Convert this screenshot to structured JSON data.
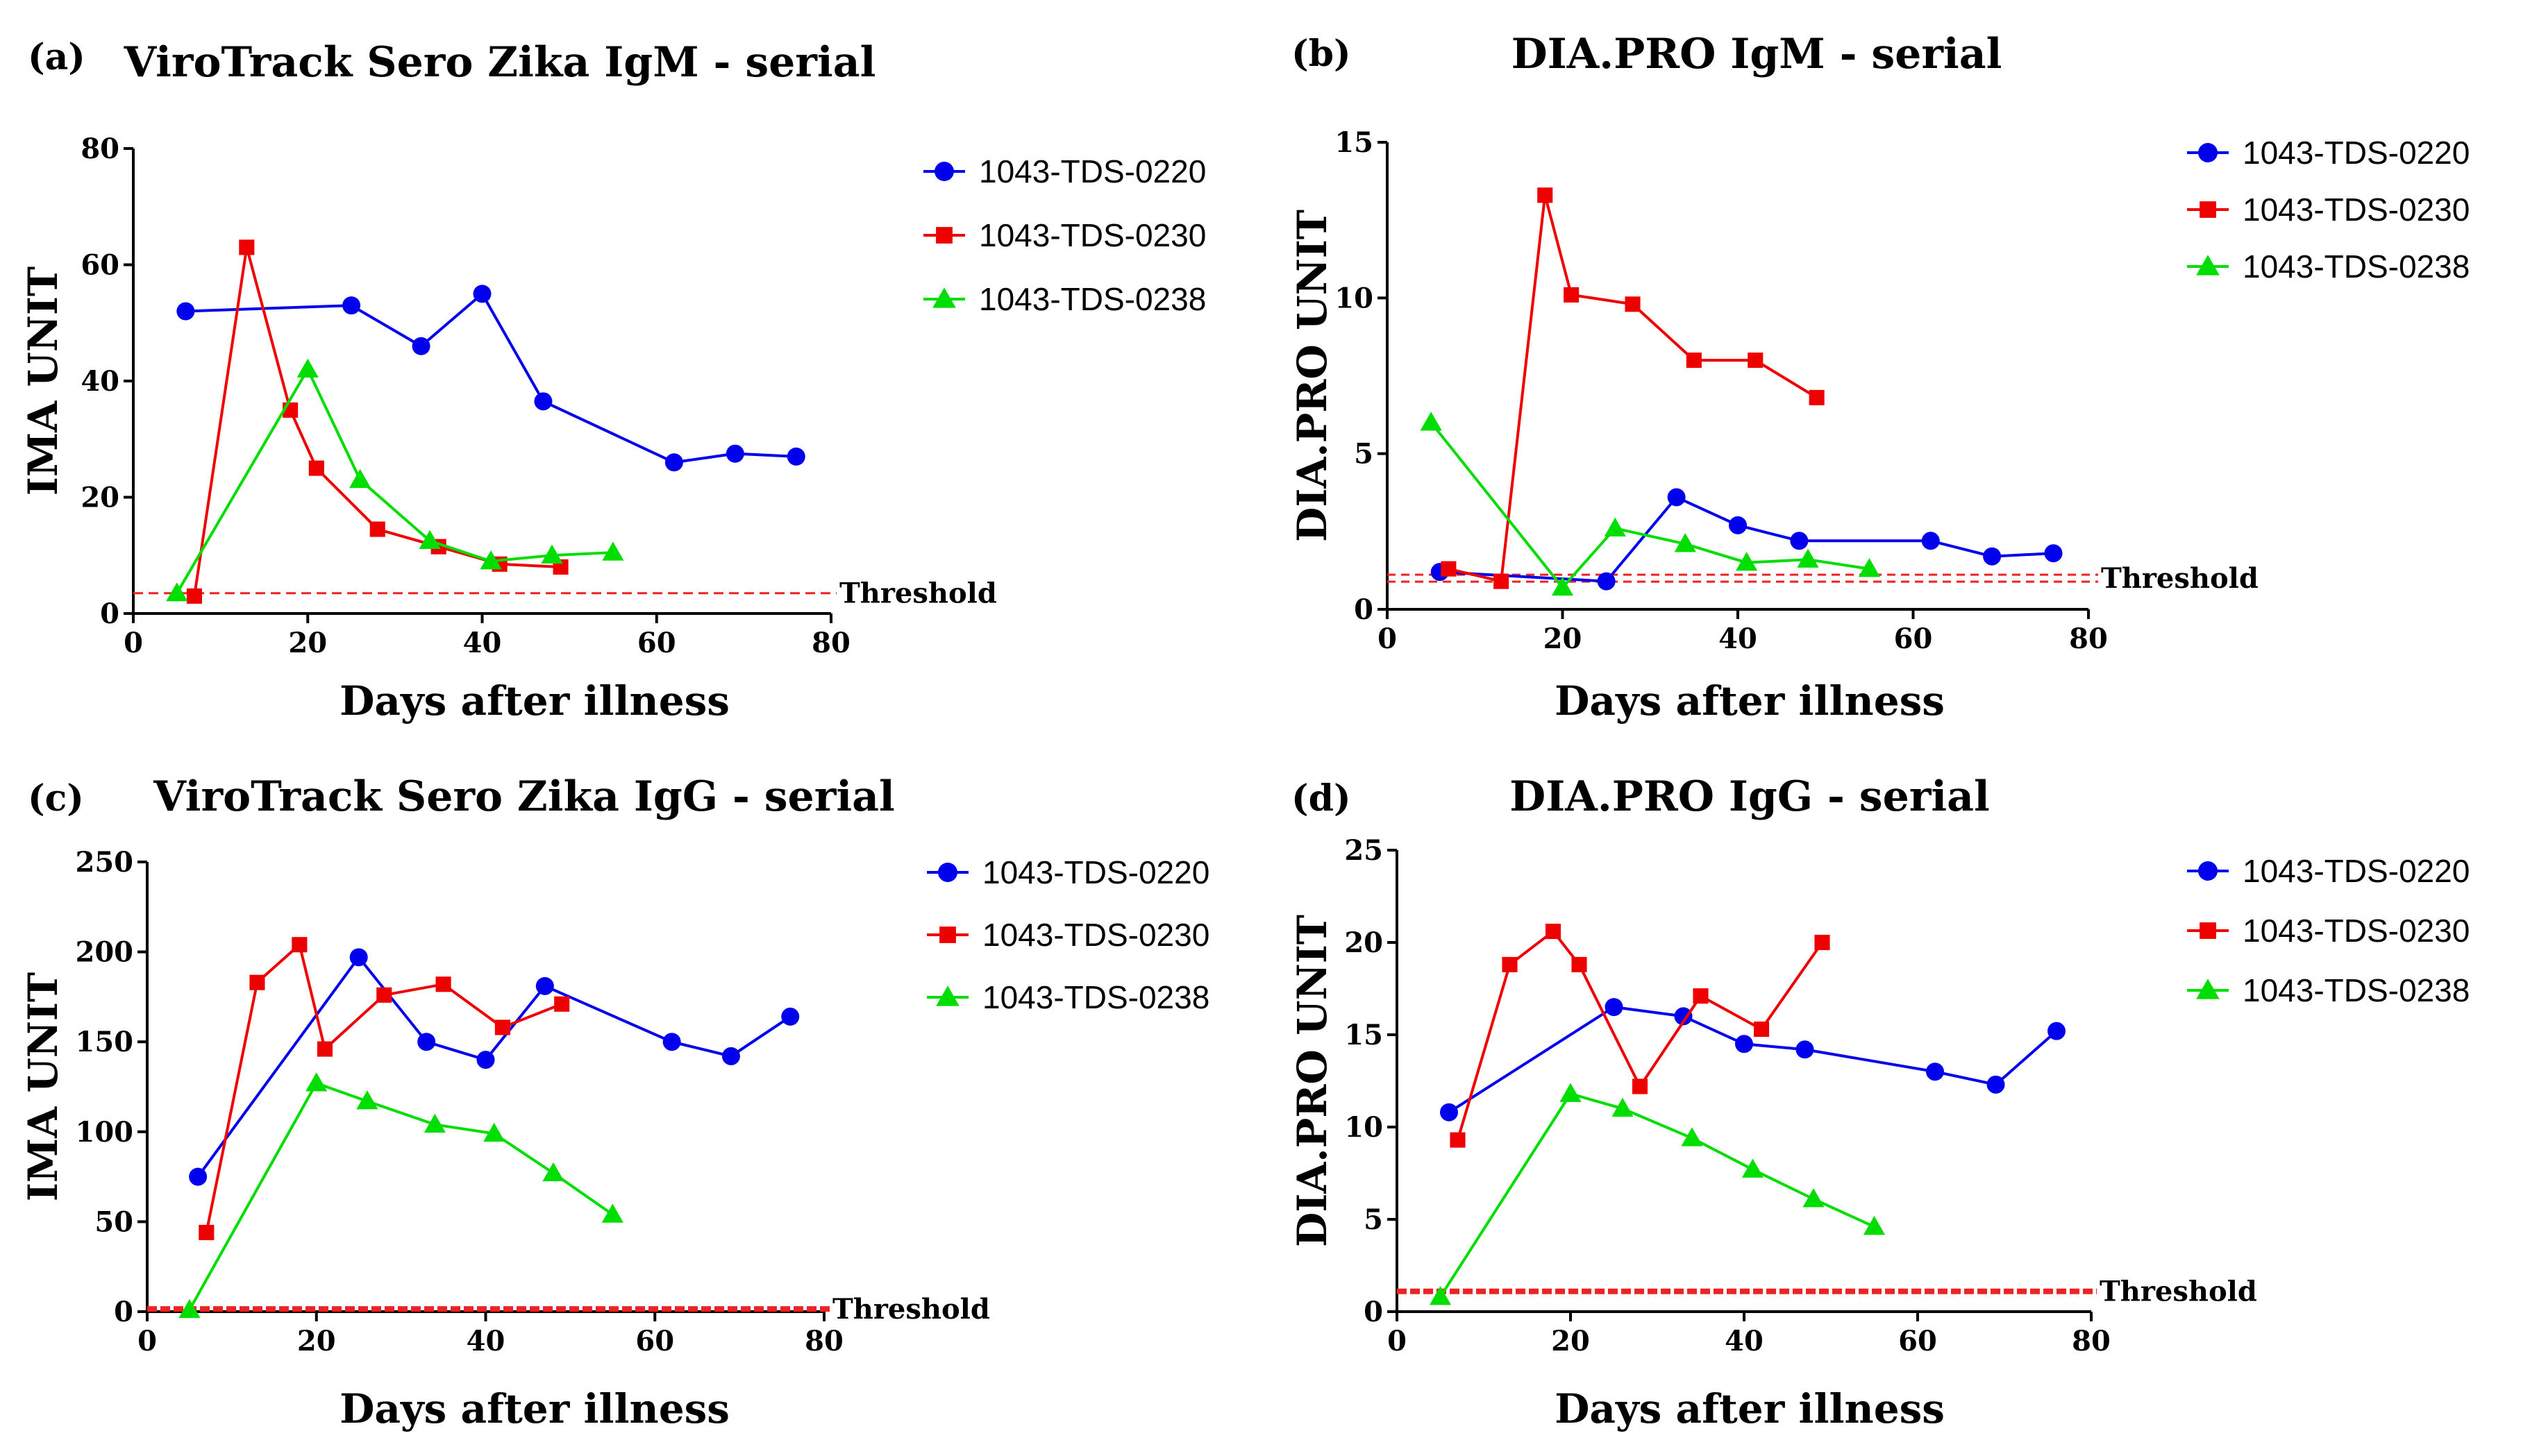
{
  "colors": {
    "s0220": "#0000ee",
    "s0230": "#ee0000",
    "s0238": "#00dd00",
    "threshold": "#ee2222"
  },
  "series_names": [
    "1043-TDS-0220",
    "1043-TDS-0230",
    "1043-TDS-0238"
  ],
  "chart_data": [
    {
      "type": "line",
      "panel": "(a)",
      "title": "ViroTrack Sero Zika IgM - serial",
      "xlabel": "Days after illness",
      "ylabel": "IMA UNIT",
      "xlim": [
        0,
        80
      ],
      "ylim": [
        0,
        80
      ],
      "xticks": [
        0,
        20,
        40,
        60,
        80
      ],
      "yticks": [
        0,
        20,
        40,
        60,
        80
      ],
      "threshold": 3.5,
      "threshold_label": "Threshold",
      "threshold_style": "dashed",
      "series": [
        {
          "name": "1043-TDS-0220",
          "marker": "circle",
          "x": [
            6,
            25,
            33,
            40,
            47,
            62,
            69,
            76
          ],
          "y": [
            52,
            53,
            46,
            55,
            36.5,
            26,
            27.5,
            27
          ]
        },
        {
          "name": "1043-TDS-0230",
          "marker": "square",
          "x": [
            7,
            13,
            18,
            21,
            28,
            35,
            42,
            49
          ],
          "y": [
            3,
            63,
            35,
            25,
            14.5,
            11.5,
            8.5,
            8
          ]
        },
        {
          "name": "1043-TDS-0238",
          "marker": "triangle",
          "x": [
            5,
            20,
            26,
            34,
            41,
            48,
            55
          ],
          "y": [
            3.5,
            42,
            23,
            12.5,
            9,
            10,
            10.5
          ]
        }
      ]
    },
    {
      "type": "line",
      "panel": "(b)",
      "title": "DIA.PRO IgM - serial",
      "xlabel": "Days after illness",
      "ylabel": "DIA.PRO UNIT",
      "xlim": [
        0,
        80
      ],
      "ylim": [
        0,
        15
      ],
      "xticks": [
        0,
        20,
        40,
        60,
        80
      ],
      "yticks": [
        0,
        5,
        10,
        15
      ],
      "threshold": 1.0,
      "threshold_label": "Threshold",
      "threshold_style": "double-dashed",
      "series": [
        {
          "name": "1043-TDS-0220",
          "marker": "circle",
          "x": [
            6,
            25,
            33,
            40,
            47,
            62,
            69,
            76
          ],
          "y": [
            1.2,
            0.9,
            3.6,
            2.7,
            2.2,
            2.2,
            1.7,
            1.8
          ]
        },
        {
          "name": "1043-TDS-0230",
          "marker": "square",
          "x": [
            7,
            13,
            18,
            21,
            28,
            35,
            42,
            49
          ],
          "y": [
            1.3,
            0.9,
            13.3,
            10.1,
            9.8,
            8.0,
            8.0,
            6.8
          ]
        },
        {
          "name": "1043-TDS-0238",
          "marker": "triangle",
          "x": [
            5,
            20,
            26,
            34,
            41,
            48,
            55
          ],
          "y": [
            6.0,
            0.7,
            2.6,
            2.1,
            1.5,
            1.6,
            1.3
          ]
        }
      ]
    },
    {
      "type": "line",
      "panel": "(c)",
      "title": "ViroTrack Sero Zika IgG - serial",
      "xlabel": "Days after illness",
      "ylabel": "IMA UNIT",
      "xlim": [
        0,
        80
      ],
      "ylim": [
        0,
        250
      ],
      "xticks": [
        0,
        20,
        40,
        60,
        80
      ],
      "yticks": [
        0,
        50,
        100,
        150,
        200,
        250
      ],
      "threshold": 1.5,
      "threshold_label": "Threshold",
      "threshold_style": "thick-dashed",
      "series": [
        {
          "name": "1043-TDS-0220",
          "marker": "circle",
          "x": [
            6,
            25,
            33,
            40,
            47,
            62,
            69,
            76
          ],
          "y": [
            75,
            197,
            150,
            140,
            181,
            150,
            142,
            164
          ]
        },
        {
          "name": "1043-TDS-0230",
          "marker": "square",
          "x": [
            7,
            13,
            18,
            21,
            28,
            35,
            42,
            49
          ],
          "y": [
            44,
            183,
            204,
            146,
            176,
            182,
            158,
            171
          ]
        },
        {
          "name": "1043-TDS-0238",
          "marker": "triangle",
          "x": [
            5,
            20,
            26,
            34,
            41,
            48,
            55
          ],
          "y": [
            1,
            127,
            117,
            104,
            99,
            77,
            54
          ]
        }
      ]
    },
    {
      "type": "line",
      "panel": "(d)",
      "title": "DIA.PRO IgG - serial",
      "xlabel": "Days after illness",
      "ylabel": "DIA.PRO UNIT",
      "xlim": [
        0,
        80
      ],
      "ylim": [
        0,
        25
      ],
      "xticks": [
        0,
        20,
        40,
        60,
        80
      ],
      "yticks": [
        0,
        5,
        10,
        15,
        20,
        25
      ],
      "threshold": 1.1,
      "threshold_label": "Threshold",
      "threshold_style": "thick-dashed",
      "series": [
        {
          "name": "1043-TDS-0220",
          "marker": "circle",
          "x": [
            6,
            25,
            33,
            40,
            47,
            62,
            69,
            76
          ],
          "y": [
            10.8,
            16.5,
            16.0,
            14.5,
            14.2,
            13.0,
            12.3,
            15.2
          ]
        },
        {
          "name": "1043-TDS-0230",
          "marker": "square",
          "x": [
            7,
            13,
            18,
            21,
            28,
            35,
            42,
            49
          ],
          "y": [
            9.3,
            18.8,
            20.6,
            18.8,
            12.2,
            17.1,
            15.3,
            20.0
          ]
        },
        {
          "name": "1043-TDS-0238",
          "marker": "triangle",
          "x": [
            5,
            20,
            26,
            34,
            41,
            48,
            55
          ],
          "y": [
            0.8,
            11.8,
            11.0,
            9.4,
            7.7,
            6.1,
            4.6
          ]
        }
      ]
    }
  ]
}
